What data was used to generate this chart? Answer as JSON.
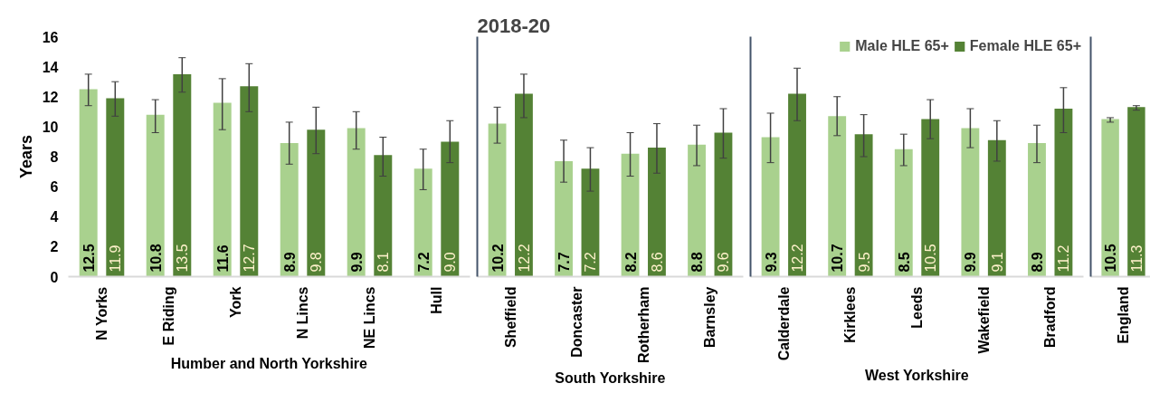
{
  "chart_data": [
    {
      "type": "bar",
      "ylabel": "Years",
      "xlabel": "Humber and North Yorkshire",
      "categories": [
        "N Yorks",
        "E Riding",
        "York",
        "N Lincs",
        "NE Lincs",
        "Hull"
      ],
      "ylim": [
        0,
        16
      ],
      "yticks": [
        0,
        2,
        4,
        6,
        8,
        10,
        12,
        14,
        16
      ],
      "series": [
        {
          "color": "#a9d18e",
          "values": [
            12.5,
            10.8,
            11.6,
            8.9,
            9.9,
            7.2
          ],
          "value_labels": [
            "12.5",
            "10.8",
            "11.6",
            "8.9",
            "9.9",
            "7.2"
          ],
          "errors": [
            [
              11.4,
              13.5
            ],
            [
              9.6,
              11.8
            ],
            [
              9.8,
              13.2
            ],
            [
              7.5,
              10.3
            ],
            [
              8.5,
              11.0
            ],
            [
              5.8,
              8.5
            ]
          ]
        },
        {
          "color": "#548235",
          "values": [
            11.9,
            13.5,
            12.7,
            9.8,
            8.1,
            9.0
          ],
          "value_labels": [
            "11.9",
            "13.5",
            "12.7",
            "9.8",
            "8.1",
            "9.0"
          ],
          "errors": [
            [
              10.7,
              13.0
            ],
            [
              12.3,
              14.6
            ],
            [
              11.0,
              14.2
            ],
            [
              8.2,
              11.3
            ],
            [
              6.7,
              9.3
            ],
            [
              7.6,
              10.4
            ]
          ]
        }
      ]
    },
    {
      "type": "bar",
      "title": "2018-20",
      "xlabel": "South Yorkshire",
      "categories": [
        "Sheffield",
        "Doncaster",
        "Rotherham",
        "Barnsley"
      ],
      "ylim": [
        0,
        16
      ],
      "yticks": [
        0,
        2,
        4,
        6,
        8,
        10,
        12,
        14,
        16
      ],
      "tick_labels": "x",
      "series": [
        {
          "color": "#a9d18e",
          "values": [
            10.2,
            7.7,
            8.2,
            8.8
          ],
          "value_labels": [
            "10.2",
            "7.7",
            "8.2",
            "8.8"
          ],
          "errors": [
            [
              8.9,
              11.3
            ],
            [
              6.3,
              9.1
            ],
            [
              6.7,
              9.6
            ],
            [
              7.4,
              10.1
            ]
          ]
        },
        {
          "color": "#548235",
          "values": [
            12.2,
            7.2,
            8.6,
            9.6
          ],
          "value_labels": [
            "12.2",
            "7.2",
            "8.6",
            "9.6"
          ],
          "errors": [
            [
              10.6,
              13.5
            ],
            [
              5.7,
              8.6
            ],
            [
              6.9,
              10.2
            ],
            [
              7.9,
              11.2
            ]
          ]
        }
      ]
    },
    {
      "type": "bar",
      "xlabel": "West Yorkshire",
      "categories": [
        "Calderdale",
        "Kirklees",
        "Leeds",
        "Wakefield",
        "Bradford"
      ],
      "ylim": [
        0,
        16
      ],
      "yticks": [
        0,
        2,
        4,
        6,
        8,
        10,
        12,
        14,
        16
      ],
      "tick_labels": "x",
      "legend": "top right",
      "series": [
        {
          "name": "Male HLE 65+",
          "color": "#a9d18e",
          "values": [
            9.3,
            10.7,
            8.5,
            9.9,
            8.9
          ],
          "value_labels": [
            "9.3",
            "10.7",
            "8.5",
            "9.9",
            "8.9"
          ],
          "errors": [
            [
              7.6,
              10.9
            ],
            [
              9.4,
              12.0
            ],
            [
              7.4,
              9.5
            ],
            [
              8.6,
              11.2
            ],
            [
              7.6,
              10.1
            ]
          ]
        },
        {
          "name": "Female HLE 65+",
          "color": "#548235",
          "values": [
            12.2,
            9.5,
            10.5,
            9.1,
            11.2
          ],
          "value_labels": [
            "12.2",
            "9.5",
            "10.5",
            "9.1",
            "11.2"
          ],
          "errors": [
            [
              10.4,
              13.9
            ],
            [
              8.0,
              10.8
            ],
            [
              9.2,
              11.8
            ],
            [
              7.7,
              10.4
            ],
            [
              9.6,
              12.6
            ]
          ]
        }
      ]
    },
    {
      "type": "bar",
      "categories": [
        "England"
      ],
      "ylim": [
        0,
        16
      ],
      "yticks": [
        0,
        2,
        4,
        6,
        8,
        10,
        12,
        14,
        16
      ],
      "tick_labels": "x",
      "series": [
        {
          "color": "#a9d18e",
          "values": [
            10.5
          ],
          "value_labels": [
            "10.5"
          ],
          "errors": [
            [
              10.3,
              10.6
            ]
          ]
        },
        {
          "color": "#548235",
          "values": [
            11.3
          ],
          "value_labels": [
            "11.3"
          ],
          "errors": [
            [
              11.1,
              11.4
            ]
          ]
        }
      ]
    }
  ]
}
